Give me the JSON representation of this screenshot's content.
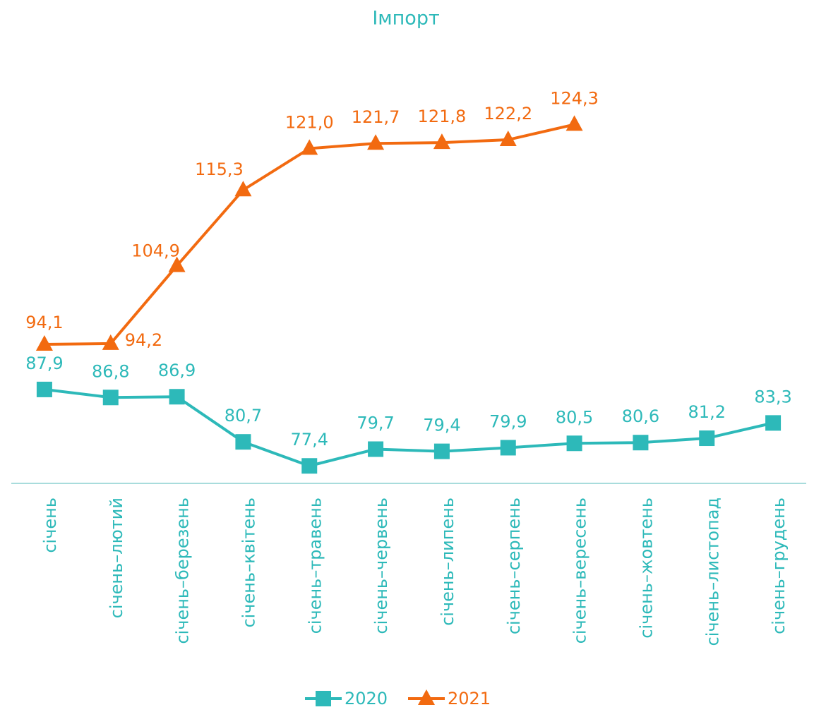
{
  "chart_data": {
    "type": "line",
    "title": "Імпорт",
    "categories": [
      "січень",
      "січень–лютий",
      "січень–березень",
      "січень–квітень",
      "січень–травень",
      "січень–червень",
      "січень–липень",
      "січень–серпень",
      "січень–вересень",
      "січень–жовтень",
      "січень–листопад",
      "січень–грудень"
    ],
    "series": [
      {
        "name": "2020",
        "color": "#2db9b9",
        "marker": "square",
        "values": [
          87.9,
          86.8,
          86.9,
          80.7,
          77.4,
          79.7,
          79.4,
          79.9,
          80.5,
          80.6,
          81.2,
          83.3
        ],
        "value_labels": [
          "87,9",
          "86,8",
          "86,9",
          "80,7",
          "77,4",
          "79,7",
          "79,4",
          "79,9",
          "80,5",
          "80,6",
          "81,2",
          "83,3"
        ]
      },
      {
        "name": "2021",
        "color": "#f26a10",
        "marker": "triangle",
        "values": [
          94.1,
          94.2,
          104.9,
          115.3,
          121.0,
          121.7,
          121.8,
          122.2,
          124.3,
          null,
          null,
          null
        ],
        "value_labels": [
          "94,1",
          "94,2",
          "104,9",
          "115,3",
          "121,0",
          "121,7",
          "121,8",
          "122,2",
          "124,3",
          null,
          null,
          null
        ]
      }
    ],
    "ylim": [
      75,
      135
    ]
  }
}
